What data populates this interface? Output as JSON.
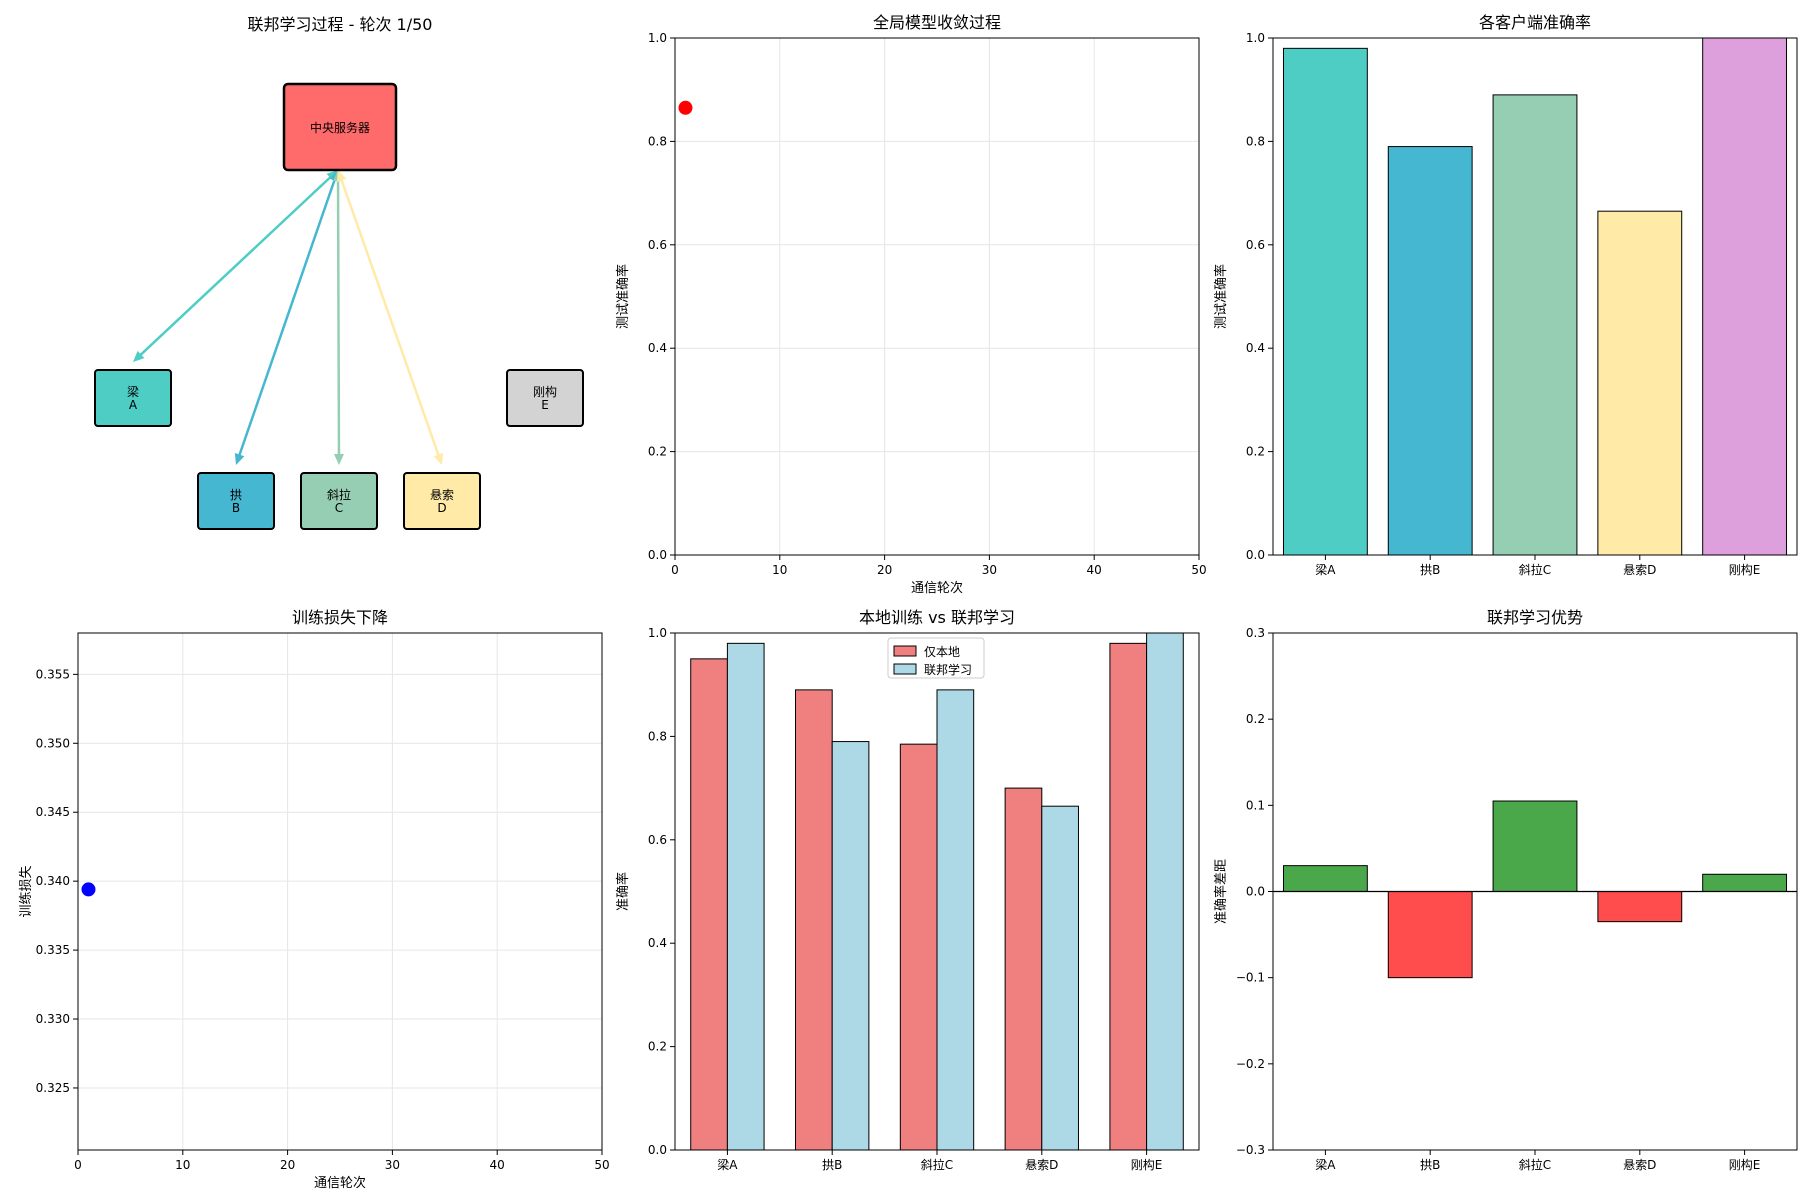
{
  "chart_data": [
    {
      "id": "network",
      "type": "diagram",
      "title": "联邦学习过程 - 轮次 1/50",
      "server": {
        "label": "中央服务器",
        "color": "#ff6b6b"
      },
      "clients": [
        {
          "name": "梁",
          "letter": "A",
          "color": "#4ecdc4",
          "active": true
        },
        {
          "name": "拱",
          "letter": "B",
          "color": "#45b7d1",
          "active": true
        },
        {
          "name": "斜拉",
          "letter": "C",
          "color": "#96ceb4",
          "active": true
        },
        {
          "name": "悬索",
          "letter": "D",
          "color": "#ffeaa7",
          "active": true
        },
        {
          "name": "刚构",
          "letter": "E",
          "color": "#d3d3d3",
          "active": false
        }
      ]
    },
    {
      "id": "convergence",
      "type": "scatter",
      "title": "全局模型收敛过程",
      "xlabel": "通信轮次",
      "ylabel": "测试准确率",
      "xlim": [
        0,
        50
      ],
      "ylim": [
        0,
        1
      ],
      "xticks": [
        0,
        10,
        20,
        30,
        40,
        50
      ],
      "yticks": [
        "0.0",
        "0.2",
        "0.4",
        "0.6",
        "0.8",
        "1.0"
      ],
      "grid": true,
      "points": [
        {
          "x": 1,
          "y": 0.865
        }
      ],
      "point_color": "#ff0000"
    },
    {
      "id": "client-accuracy",
      "type": "bar",
      "title": "各客户端准确率",
      "ylabel": "测试准确率",
      "ylim": [
        0,
        1
      ],
      "yticks": [
        "0.0",
        "0.2",
        "0.4",
        "0.6",
        "0.8",
        "1.0"
      ],
      "categories": [
        "梁A",
        "拱B",
        "斜拉C",
        "悬索D",
        "刚构E"
      ],
      "values": [
        0.98,
        0.79,
        0.89,
        0.665,
        1.0
      ],
      "colors": [
        "#4ecdc4",
        "#45b7d1",
        "#96ceb4",
        "#ffeaa7",
        "#dda0dd"
      ]
    },
    {
      "id": "training-loss",
      "type": "scatter",
      "title": "训练损失下降",
      "xlabel": "通信轮次",
      "ylabel": "训练损失",
      "xlim": [
        0,
        50
      ],
      "ylim": [
        0.3205,
        0.358
      ],
      "xticks": [
        0,
        10,
        20,
        30,
        40,
        50
      ],
      "yticks": [
        "0.325",
        "0.330",
        "0.335",
        "0.340",
        "0.345",
        "0.350",
        "0.355"
      ],
      "grid": true,
      "points": [
        {
          "x": 1,
          "y": 0.3394
        }
      ],
      "point_color": "#0000ff"
    },
    {
      "id": "local-vs-fed",
      "type": "bar",
      "title": "本地训练 vs 联邦学习",
      "ylabel": "准确率",
      "ylim": [
        0,
        1
      ],
      "yticks": [
        "0.0",
        "0.2",
        "0.4",
        "0.6",
        "0.8",
        "1.0"
      ],
      "categories": [
        "梁A",
        "拱B",
        "斜拉C",
        "悬索D",
        "刚构E"
      ],
      "legend_position": "top-center",
      "series": [
        {
          "name": "仅本地",
          "values": [
            0.95,
            0.89,
            0.785,
            0.7,
            0.98
          ],
          "color": "#f08080"
        },
        {
          "name": "联邦学习",
          "values": [
            0.98,
            0.79,
            0.89,
            0.665,
            1.0
          ],
          "color": "#add8e6"
        }
      ]
    },
    {
      "id": "advantage",
      "type": "bar",
      "title": "联邦学习优势",
      "ylabel": "准确率差距",
      "ylim": [
        -0.3,
        0.3
      ],
      "yticks": [
        "−0.3",
        "−0.2",
        "−0.1",
        "0.0",
        "0.1",
        "0.2",
        "0.3"
      ],
      "categories": [
        "梁A",
        "拱B",
        "斜拉C",
        "悬索D",
        "刚构E"
      ],
      "values": [
        0.03,
        -0.1,
        0.105,
        -0.035,
        0.02
      ],
      "positive_color": "#4aa84a",
      "negative_color": "#ff4c4c"
    }
  ]
}
